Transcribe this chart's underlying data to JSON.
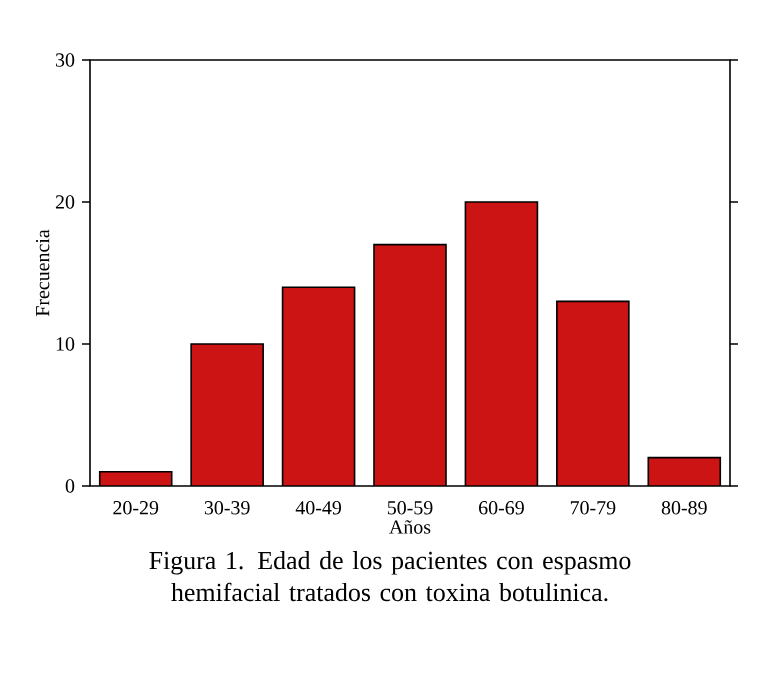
{
  "chart_data": {
    "type": "bar",
    "xlabel": "Años",
    "ylabel": "Frecuencia",
    "categories": [
      "20-29",
      "30-39",
      "40-49",
      "50-59",
      "60-69",
      "70-79",
      "80-89"
    ],
    "values": [
      1,
      10,
      14,
      17,
      20,
      13,
      2
    ],
    "color": "#cc1414",
    "ylim": [
      0,
      30
    ],
    "yticks": [
      0,
      10,
      20,
      30
    ],
    "annotations": [
      "Figura 1. Edad de los pacientes con espasmo hemifacial tratados con toxina botulinica."
    ]
  }
}
